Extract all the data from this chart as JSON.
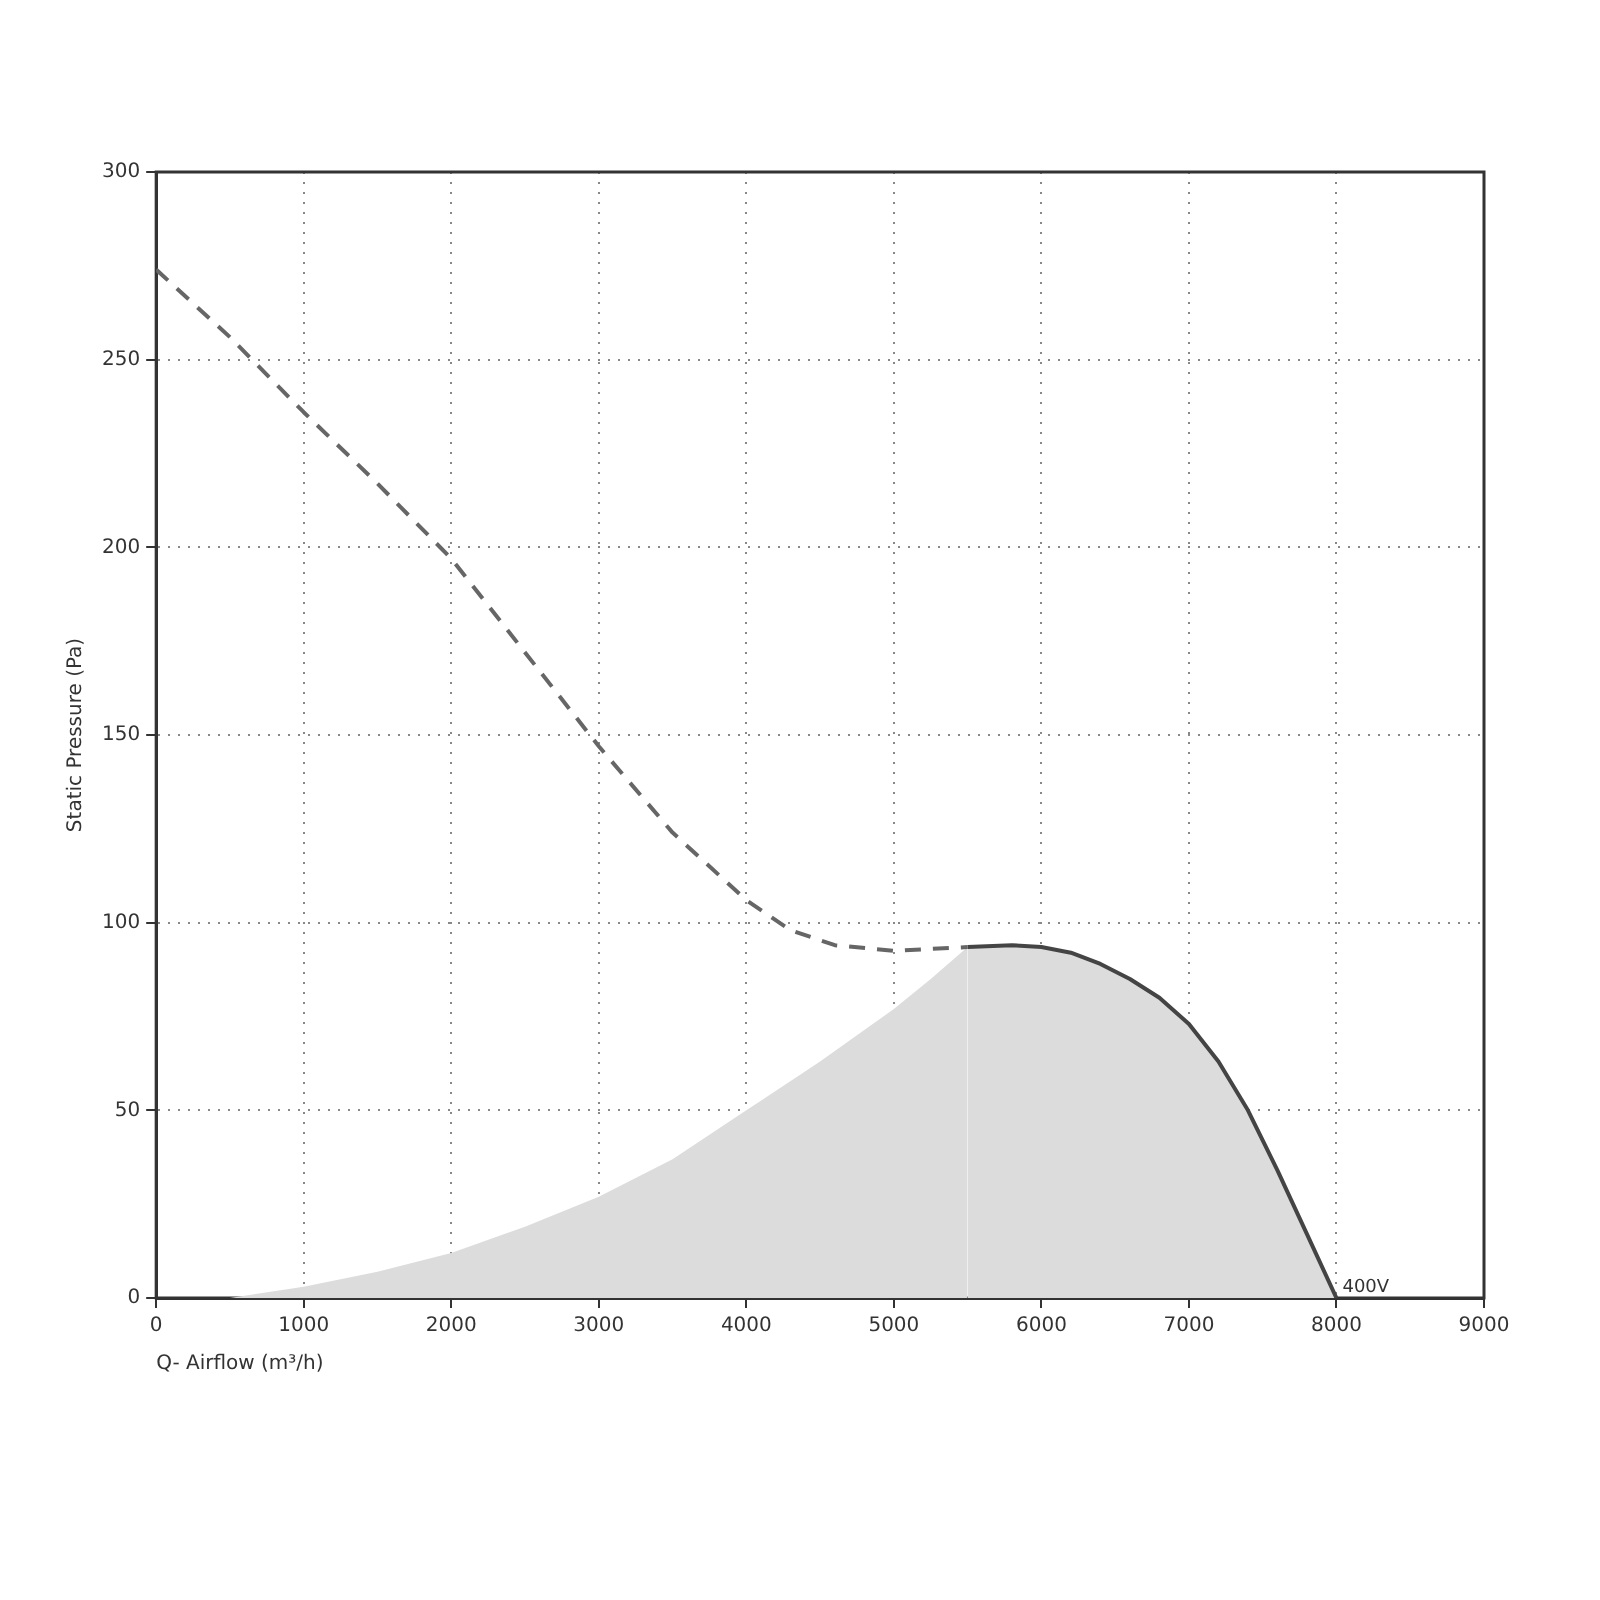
{
  "chart_data": {
    "type": "line",
    "xlabel": "Q- Airflow (m³/h)",
    "ylabel": "Static Pressure (Pa)",
    "xlim": [
      0,
      9000
    ],
    "xticks": [
      0,
      1000,
      2000,
      3000,
      4000,
      5000,
      6000,
      7000,
      8000,
      9000
    ],
    "ylim": [
      0,
      300
    ],
    "yticks": [
      0,
      50,
      100,
      150,
      200,
      250,
      300
    ],
    "grid": true,
    "marker": "none",
    "series": [
      {
        "type": "line",
        "color": "#666666",
        "line_style": "dashed",
        "x": [
          0,
          500,
          1000,
          1500,
          2000,
          2500,
          3000,
          3500,
          4000,
          4300,
          4600,
          5000,
          5500
        ],
        "values": [
          274,
          256,
          236,
          217,
          197,
          172,
          147,
          124,
          106,
          98,
          94,
          92.5,
          93.5
        ]
      },
      {
        "type": "line",
        "color": "#444444",
        "line_style": "solid",
        "x": [
          5500,
          5800,
          6000,
          6200,
          6400,
          6600,
          6800,
          7000,
          7200,
          7400,
          7600,
          7800,
          8000
        ],
        "values": [
          93.5,
          94,
          93.5,
          92,
          89,
          85,
          80,
          73,
          63,
          50,
          34,
          17,
          0
        ]
      },
      {
        "type": "area",
        "color": "#dcdcdc",
        "x": [
          500,
          1000,
          1500,
          2000,
          2500,
          3000,
          3500,
          4000,
          4500,
          5000,
          5250,
          5500
        ],
        "values": [
          0,
          3,
          7,
          12,
          19,
          27,
          37,
          50,
          63,
          77,
          85,
          93.5
        ]
      }
    ],
    "annotations": [
      {
        "text": "400V",
        "x": 8000,
        "y": 0
      }
    ]
  }
}
